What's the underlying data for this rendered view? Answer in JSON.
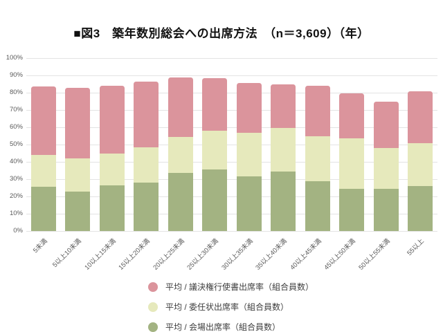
{
  "title": "■図3　築年数別総会への出席方法　（n＝3,609）（年）",
  "colors": {
    "background": "#ffffff",
    "grid": "#e3e3e3",
    "axis_text": "#5a5a5a",
    "legend_text": "#3d3d3d",
    "title_text": "#111111",
    "series_written_vote": "#db949c",
    "series_proxy": "#e6e9bc",
    "series_in_person": "#a3b382"
  },
  "chart_data": {
    "type": "bar",
    "stacked": true,
    "title": "■図3　築年数別総会への出席方法　（n＝3,609）（年）",
    "categories": [
      "5未満",
      "5以上10未満",
      "10以上15未満",
      "15以上20未満",
      "20以上25未満",
      "25以上30未満",
      "30以上35未満",
      "35以上40未満",
      "40以上45未満",
      "45以上50未満",
      "50以上55未満",
      "55以上"
    ],
    "xlabel": "",
    "ylabel": "",
    "ylim": [
      0,
      100
    ],
    "ytick_step": 10,
    "ytick_suffix": "%",
    "grid": true,
    "legend_position": "bottom-left",
    "bar_stack_note": "series listed top-of-stack first; stacked bottom-up in reverse order",
    "series": [
      {
        "name": "平均 / 議決権行使書出席率（組合員数）",
        "color": "#db949c",
        "values": [
          39.5,
          41.0,
          39.0,
          38.0,
          34.5,
          30.5,
          28.5,
          25.5,
          29.0,
          26.0,
          27.0,
          30.0
        ]
      },
      {
        "name": "平均 / 委任状出席率（組合員数）",
        "color": "#e6e9bc",
        "values": [
          18.5,
          19.0,
          18.5,
          20.5,
          21.0,
          22.5,
          25.5,
          25.0,
          26.0,
          29.0,
          23.5,
          25.0
        ]
      },
      {
        "name": "平均 / 会場出席率（組合員数）",
        "color": "#a3b382",
        "values": [
          25.5,
          23.0,
          26.5,
          28.0,
          33.5,
          35.5,
          31.5,
          34.5,
          29.0,
          24.5,
          24.5,
          26.0
        ]
      }
    ]
  }
}
